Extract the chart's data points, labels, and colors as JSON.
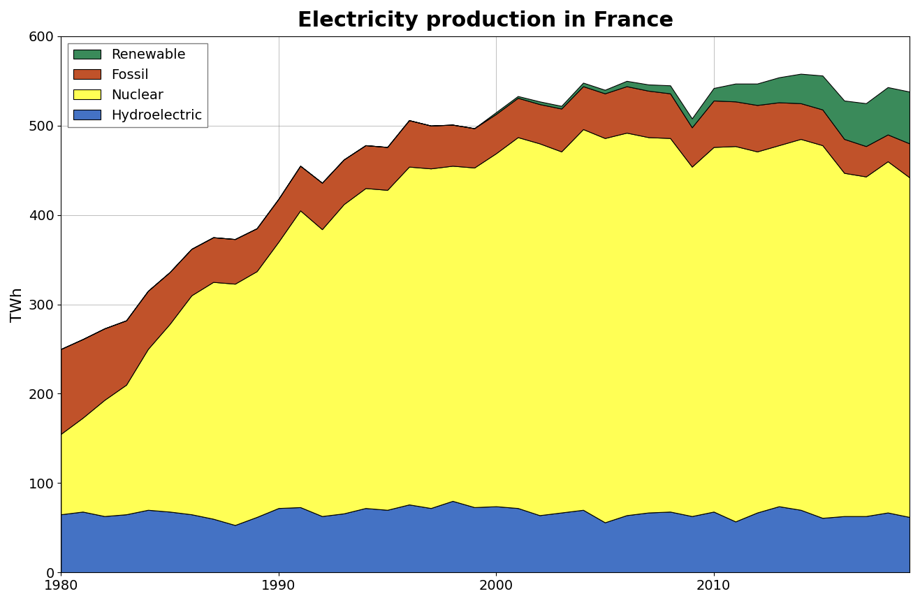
{
  "title": "Electricity production in France",
  "ylabel": "TWh",
  "ylim": [
    0,
    600
  ],
  "xlim": [
    1980,
    2019
  ],
  "yticks": [
    0,
    100,
    200,
    300,
    400,
    500,
    600
  ],
  "xticks": [
    1980,
    1990,
    2000,
    2010
  ],
  "colors": {
    "hydroelectric": "#4472C4",
    "nuclear": "#FFFF55",
    "fossil": "#C0522A",
    "renewable": "#3A8A5A"
  },
  "legend_labels": [
    "Renewable",
    "Fossil",
    "Nuclear",
    "Hydroelectric"
  ],
  "years": [
    1980,
    1981,
    1982,
    1983,
    1984,
    1985,
    1986,
    1987,
    1988,
    1989,
    1990,
    1991,
    1992,
    1993,
    1994,
    1995,
    1996,
    1997,
    1998,
    1999,
    2000,
    2001,
    2002,
    2003,
    2004,
    2005,
    2006,
    2007,
    2008,
    2009,
    2010,
    2011,
    2012,
    2013,
    2014,
    2015,
    2016,
    2017,
    2018,
    2019
  ],
  "hydroelectric": [
    65,
    68,
    63,
    65,
    70,
    68,
    65,
    60,
    53,
    62,
    72,
    73,
    63,
    66,
    72,
    70,
    76,
    72,
    80,
    73,
    74,
    72,
    64,
    67,
    70,
    56,
    64,
    67,
    68,
    63,
    68,
    57,
    67,
    74,
    70,
    61,
    63,
    63,
    67,
    62
  ],
  "nuclear": [
    90,
    105,
    130,
    145,
    180,
    210,
    245,
    265,
    270,
    275,
    298,
    332,
    321,
    346,
    358,
    358,
    378,
    380,
    375,
    380,
    395,
    415,
    416,
    404,
    426,
    430,
    428,
    420,
    418,
    391,
    408,
    420,
    404,
    404,
    415,
    417,
    384,
    380,
    393,
    380
  ],
  "fossil": [
    95,
    88,
    80,
    72,
    65,
    58,
    52,
    50,
    50,
    48,
    48,
    50,
    52,
    50,
    48,
    48,
    52,
    48,
    46,
    44,
    44,
    44,
    44,
    48,
    48,
    50,
    52,
    52,
    50,
    44,
    52,
    50,
    52,
    48,
    40,
    40,
    38,
    34,
    30,
    38
  ],
  "renewable": [
    0,
    0,
    0,
    0,
    0,
    0,
    0,
    0,
    0,
    0,
    0,
    0,
    0,
    0,
    0,
    0,
    0,
    0,
    0,
    0,
    2,
    2,
    3,
    3,
    4,
    4,
    6,
    7,
    9,
    10,
    14,
    20,
    24,
    28,
    33,
    38,
    43,
    48,
    53,
    58
  ]
}
